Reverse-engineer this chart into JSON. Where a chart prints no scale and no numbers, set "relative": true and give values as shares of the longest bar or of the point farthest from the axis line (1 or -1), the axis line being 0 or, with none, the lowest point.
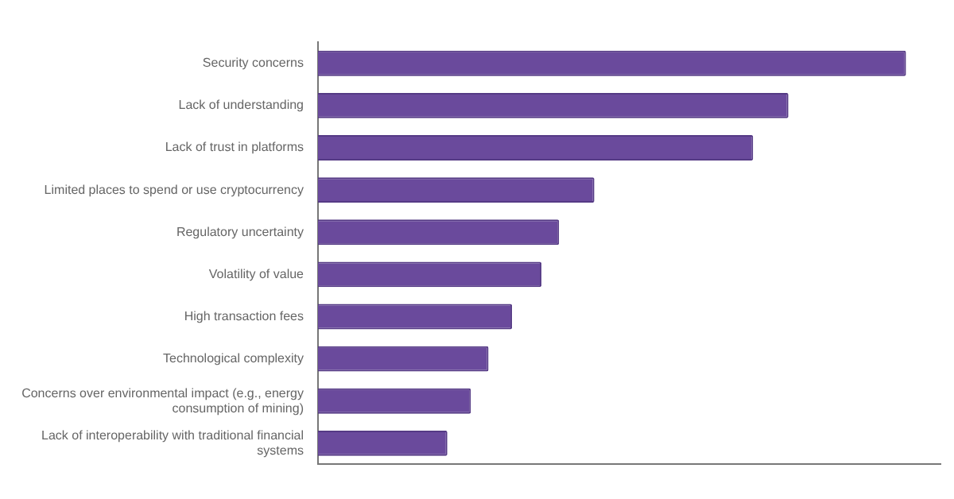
{
  "chart_data": {
    "type": "bar",
    "orientation": "horizontal",
    "relative": true,
    "categories": [
      "Security concerns",
      "Lack of understanding",
      "Lack of trust in platforms",
      "Limited places to spend or use cryptocurrency",
      "Regulatory uncertainty",
      "Volatility of value",
      "High transaction fees",
      "Technological complexity",
      "Concerns over environmental impact (e.g., energy consumption of mining)",
      "Lack of interoperability with traditional financial systems"
    ],
    "values": [
      1,
      0.8,
      0.74,
      0.47,
      0.41,
      0.38,
      0.33,
      0.29,
      0.26,
      0.22
    ],
    "color": "#6a4a9c",
    "grid": false,
    "legend": false
  }
}
